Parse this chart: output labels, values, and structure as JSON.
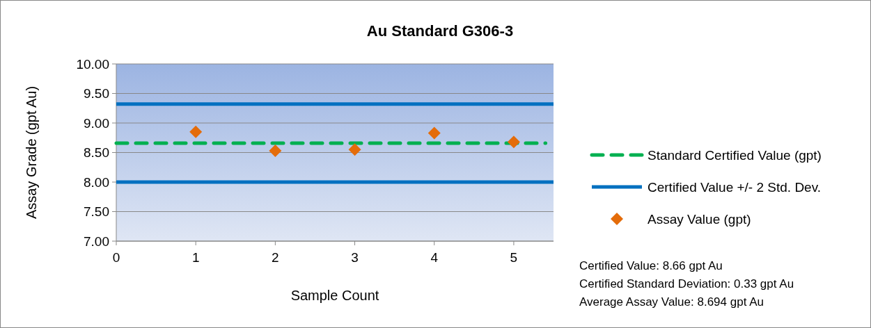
{
  "chart_data": {
    "type": "scatter",
    "title": "Au Standard  G306-3",
    "xlabel": "Sample Count",
    "ylabel": "Assay Grade (gpt Au)",
    "xlim": [
      0,
      5.5
    ],
    "xticks": [
      0,
      1,
      2,
      3,
      4,
      5
    ],
    "ylim": [
      7,
      10
    ],
    "yticks": [
      {
        "value": 7,
        "label": "7.00"
      },
      {
        "value": 7.5,
        "label": "7.50"
      },
      {
        "value": 8,
        "label": "8.00"
      },
      {
        "value": 8.5,
        "label": "8.50"
      },
      {
        "value": 9,
        "label": "9.00"
      },
      {
        "value": 9.5,
        "label": "9.50"
      },
      {
        "value": 10,
        "label": "10.00"
      }
    ],
    "grid": "y",
    "legend": "right",
    "series": [
      {
        "type": "line",
        "name": "Standard Certified Value (gpt)",
        "color": "#00b050",
        "line_style": "dashed",
        "marker": "none",
        "x": [
          0,
          5.4
        ],
        "values": [
          8.66,
          8.66
        ]
      },
      {
        "type": "line",
        "name": "Certified Value +/- 2 Std. Dev.",
        "color": "#0070c0",
        "line_style": "solid",
        "marker": "none",
        "x": [
          0,
          5.5
        ],
        "values": [
          9.32,
          9.32
        ]
      },
      {
        "type": "line",
        "color": "#0070c0",
        "line_style": "solid",
        "marker": "none",
        "x": [
          0,
          5.5
        ],
        "values": [
          8,
          8
        ]
      },
      {
        "name": "Assay Value (gpt)",
        "color": "#e46c0a",
        "marker": "diamond",
        "x": [
          1,
          2,
          3,
          4,
          5
        ],
        "values": [
          8.85,
          8.53,
          8.55,
          8.83,
          8.68
        ]
      }
    ],
    "annotations": [
      "Certified Value: 8.66 gpt Au",
      "Certified Standard Deviation: 0.33 gpt Au",
      "Average Assay Value: 8.694 gpt Au"
    ]
  }
}
